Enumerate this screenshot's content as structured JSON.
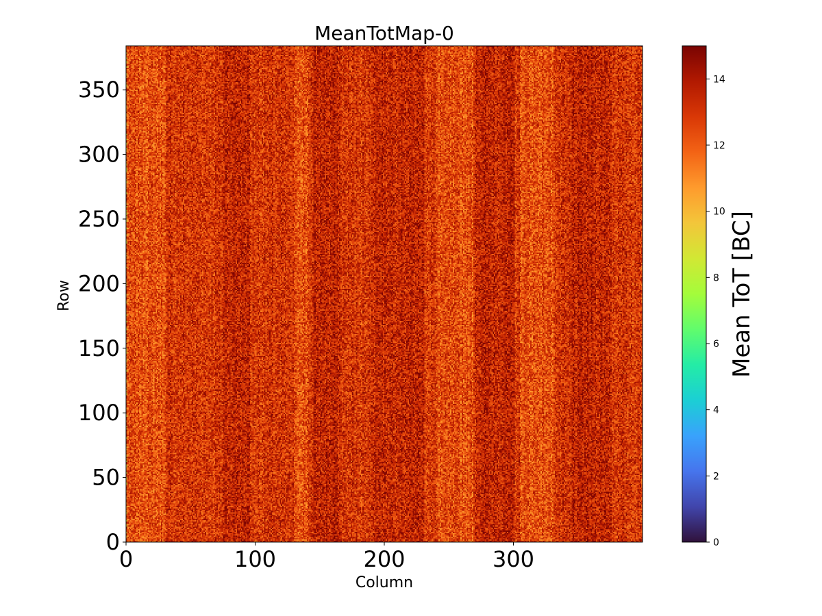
{
  "chart_data": {
    "type": "heatmap",
    "title": "MeanTotMap-0",
    "xlabel": "Column",
    "ylabel": "Row",
    "xlim": [
      0,
      400
    ],
    "ylim": [
      0,
      384
    ],
    "x_ticks": [
      0,
      100,
      200,
      300
    ],
    "y_ticks": [
      0,
      50,
      100,
      150,
      200,
      250,
      300,
      350
    ],
    "colorbar": {
      "label": "Mean ToT [BC]",
      "range": [
        0,
        15
      ],
      "ticks": [
        0,
        2,
        4,
        6,
        8,
        10,
        12,
        14
      ],
      "colormap": "turbo"
    },
    "value_summary": {
      "typical_range": [
        10,
        15
      ],
      "dominant_value": 13,
      "darker_column_bands": [
        [
          75,
          95
        ],
        [
          145,
          165
        ],
        [
          190,
          230
        ],
        [
          270,
          300
        ],
        [
          345,
          375
        ]
      ],
      "lighter_column_bands": [
        [
          0,
          30
        ],
        [
          130,
          140
        ],
        [
          240,
          268
        ],
        [
          305,
          330
        ]
      ],
      "low_value_edge_column": 0
    }
  }
}
